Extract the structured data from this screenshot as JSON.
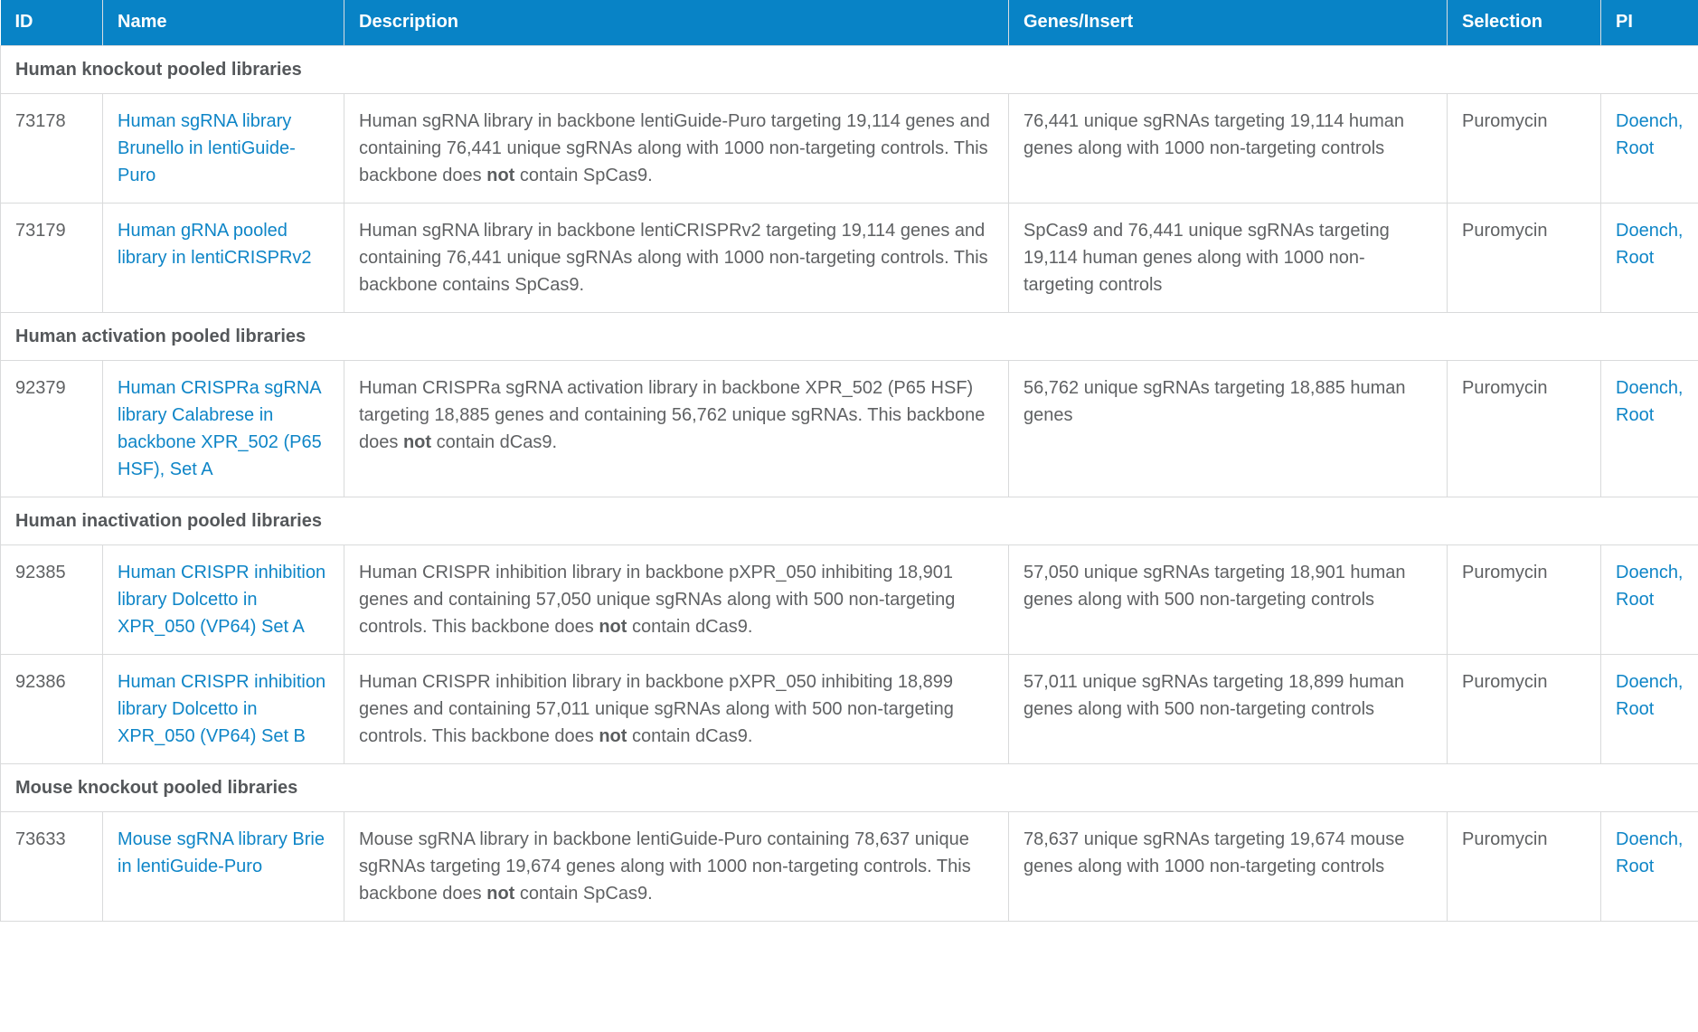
{
  "colors": {
    "header_background": "#0883c6",
    "header_text": "#ffffff",
    "link_blue": "#0e85c7",
    "body_text": "#5f6163",
    "section_text": "#54575a",
    "border": "#d9dadb"
  },
  "table": {
    "columns": [
      {
        "label": "ID"
      },
      {
        "label": "Name"
      },
      {
        "label": "Description"
      },
      {
        "label": "Genes/Insert"
      },
      {
        "label": "Selection"
      },
      {
        "label": "PI"
      }
    ],
    "sections": [
      {
        "title": "Human knockout pooled libraries",
        "rows": [
          {
            "id": "73178",
            "name": "Human sgRNA library Brunello in lentiGuide-Puro",
            "description": [
              {
                "text": "Human sgRNA library in backbone lentiGuide-Puro targeting 19,114 genes and containing 76,441 unique sgRNAs along with 1000 non-targeting controls. This backbone does ",
                "bold": false
              },
              {
                "text": "not",
                "bold": true
              },
              {
                "text": " contain SpCas9.",
                "bold": false
              }
            ],
            "genes": "76,441 unique sgRNAs targeting 19,114 human genes along with 1000 non-targeting controls",
            "selection": "Puromycin",
            "pi": [
              "Doench,",
              "Root"
            ]
          },
          {
            "id": "73179",
            "name": "Human gRNA pooled library in lentiCRISPRv2",
            "description": [
              {
                "text": "Human sgRNA library in backbone lentiCRISPRv2 targeting 19,114 genes and containing 76,441 unique sgRNAs along with 1000 non-targeting controls. This backbone contains SpCas9.",
                "bold": false
              }
            ],
            "genes": "SpCas9 and 76,441 unique sgRNAs targeting 19,114 human genes along with 1000 non-targeting controls",
            "selection": "Puromycin",
            "pi": [
              "Doench,",
              "Root"
            ]
          }
        ]
      },
      {
        "title": "Human activation pooled libraries",
        "rows": [
          {
            "id": "92379",
            "name": "Human CRISPRa sgRNA library Calabrese in backbone XPR_502 (P65 HSF), Set A",
            "description": [
              {
                "text": "Human CRISPRa sgRNA activation library in backbone XPR_502 (P65 HSF) targeting 18,885 genes and containing 56,762 unique sgRNAs. This backbone does ",
                "bold": false
              },
              {
                "text": "not",
                "bold": true
              },
              {
                "text": " contain dCas9.",
                "bold": false
              }
            ],
            "genes": "56,762 unique sgRNAs targeting 18,885 human genes",
            "selection": "Puromycin",
            "pi": [
              "Doench,",
              "Root"
            ]
          }
        ]
      },
      {
        "title": "Human inactivation pooled libraries",
        "rows": [
          {
            "id": "92385",
            "name": "Human CRISPR inhibition library Dolcetto in XPR_050 (VP64) Set A",
            "description": [
              {
                "text": "Human CRISPR inhibition library in backbone pXPR_050 inhibiting 18,901 genes and containing 57,050 unique sgRNAs along with 500 non-targeting controls. This backbone does ",
                "bold": false
              },
              {
                "text": "not",
                "bold": true
              },
              {
                "text": " contain dCas9.",
                "bold": false
              }
            ],
            "genes": "57,050 unique sgRNAs targeting 18,901 human genes along with 500 non-targeting controls",
            "selection": "Puromycin",
            "pi": [
              "Doench,",
              "Root"
            ]
          },
          {
            "id": "92386",
            "name": "Human CRISPR inhibition library Dolcetto in XPR_050 (VP64) Set B",
            "description": [
              {
                "text": "Human CRISPR inhibition library in backbone pXPR_050 inhibiting 18,899 genes and containing 57,011 unique sgRNAs along with 500 non-targeting controls. This backbone does ",
                "bold": false
              },
              {
                "text": "not",
                "bold": true
              },
              {
                "text": " contain dCas9.",
                "bold": false
              }
            ],
            "genes": "57,011 unique sgRNAs targeting 18,899 human genes along with 500 non-targeting controls",
            "selection": "Puromycin",
            "pi": [
              "Doench,",
              "Root"
            ]
          }
        ]
      },
      {
        "title": "Mouse knockout pooled libraries",
        "rows": [
          {
            "id": "73633",
            "name": "Mouse sgRNA library Brie in lentiGuide-Puro",
            "description": [
              {
                "text": "Mouse sgRNA library in backbone lentiGuide-Puro containing 78,637 unique sgRNAs targeting 19,674 genes along with 1000 non-targeting controls. This backbone does ",
                "bold": false
              },
              {
                "text": "not",
                "bold": true
              },
              {
                "text": " contain SpCas9.",
                "bold": false
              }
            ],
            "genes": "78,637 unique sgRNAs targeting 19,674 mouse genes along with 1000 non-targeting controls",
            "selection": "Puromycin",
            "pi": [
              "Doench,",
              "Root"
            ]
          }
        ]
      }
    ]
  }
}
